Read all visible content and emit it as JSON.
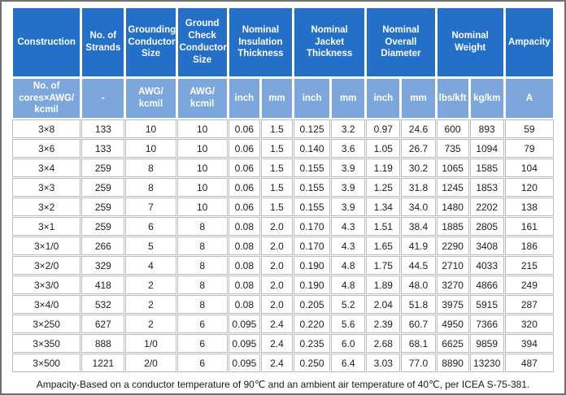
{
  "colors": {
    "header_bg": "#2470c9",
    "subheader_bg": "#7ba7dc",
    "frame_border": "#6f6f6f",
    "grid_border": "#bcbcbc",
    "ink": "#1d1d1d"
  },
  "table": {
    "header_row1": [
      {
        "label": "Construction",
        "span": 1
      },
      {
        "label": "No. of Strands",
        "span": 1
      },
      {
        "label": "Grounding Conductor Size",
        "span": 1
      },
      {
        "label": "Ground Check Conductor Size",
        "span": 1
      },
      {
        "label": "Nominal Insulation Thickness",
        "span": 2
      },
      {
        "label": "Nominal Jacket Thickness",
        "span": 2
      },
      {
        "label": "Nominal Overall Diameter",
        "span": 2
      },
      {
        "label": "Nominal Weight",
        "span": 2
      },
      {
        "label": "Ampacity",
        "span": 1
      }
    ],
    "header_row2": [
      "No. of\ncores×AWG/\nkcmil",
      "-",
      "AWG/\nkcmil",
      "AWG/\nkcmil",
      "inch",
      "mm",
      "inch",
      "mm",
      "inch",
      "mm",
      "lbs/kft",
      "kg/km",
      "A"
    ],
    "rows": [
      [
        "3×8",
        "133",
        "10",
        "10",
        "0.06",
        "1.5",
        "0.125",
        "3.2",
        "0.97",
        "24.6",
        "600",
        "893",
        "59"
      ],
      [
        "3×6",
        "133",
        "10",
        "10",
        "0.06",
        "1.5",
        "0.140",
        "3.6",
        "1.05",
        "26.7",
        "735",
        "1094",
        "79"
      ],
      [
        "3×4",
        "259",
        "8",
        "10",
        "0.06",
        "1.5",
        "0.155",
        "3.9",
        "1.19",
        "30.2",
        "1065",
        "1585",
        "104"
      ],
      [
        "3×3",
        "259",
        "8",
        "10",
        "0.06",
        "1.5",
        "0.155",
        "3.9",
        "1.25",
        "31.8",
        "1245",
        "1853",
        "120"
      ],
      [
        "3×2",
        "259",
        "7",
        "10",
        "0.06",
        "1.5",
        "0.155",
        "3.9",
        "1.34",
        "34.0",
        "1480",
        "2202",
        "138"
      ],
      [
        "3×1",
        "259",
        "6",
        "8",
        "0.08",
        "2.0",
        "0.170",
        "4.3",
        "1.51",
        "38.4",
        "1885",
        "2805",
        "161"
      ],
      [
        "3×1/0",
        "266",
        "5",
        "8",
        "0.08",
        "2.0",
        "0.170",
        "4.3",
        "1.65",
        "41.9",
        "2290",
        "3408",
        "186"
      ],
      [
        "3×2/0",
        "329",
        "4",
        "8",
        "0.08",
        "2.0",
        "0.190",
        "4.8",
        "1.75",
        "44.5",
        "2710",
        "4033",
        "215"
      ],
      [
        "3×3/0",
        "418",
        "2",
        "8",
        "0.08",
        "2.0",
        "0.190",
        "4.8",
        "1.89",
        "48.0",
        "3270",
        "4866",
        "249"
      ],
      [
        "3×4/0",
        "532",
        "2",
        "8",
        "0.08",
        "2.0",
        "0.205",
        "5.2",
        "2.04",
        "51.8",
        "3975",
        "5915",
        "287"
      ],
      [
        "3×250",
        "627",
        "2",
        "6",
        "0.095",
        "2.4",
        "0.220",
        "5.6",
        "2.39",
        "60.7",
        "4950",
        "7366",
        "320"
      ],
      [
        "3×350",
        "888",
        "1/0",
        "6",
        "0.095",
        "2.4",
        "0.235",
        "6.0",
        "2.68",
        "68.1",
        "6625",
        "9859",
        "394"
      ],
      [
        "3×500",
        "1221",
        "2/0",
        "6",
        "0.095",
        "2.4",
        "0.250",
        "6.4",
        "3.03",
        "77.0",
        "8890",
        "13230",
        "487"
      ]
    ],
    "footnote": "Ampacity-Based on a conductor temperature of 90℃ and an ambient air temperature of 40℃, per ICEA S-75-381."
  }
}
